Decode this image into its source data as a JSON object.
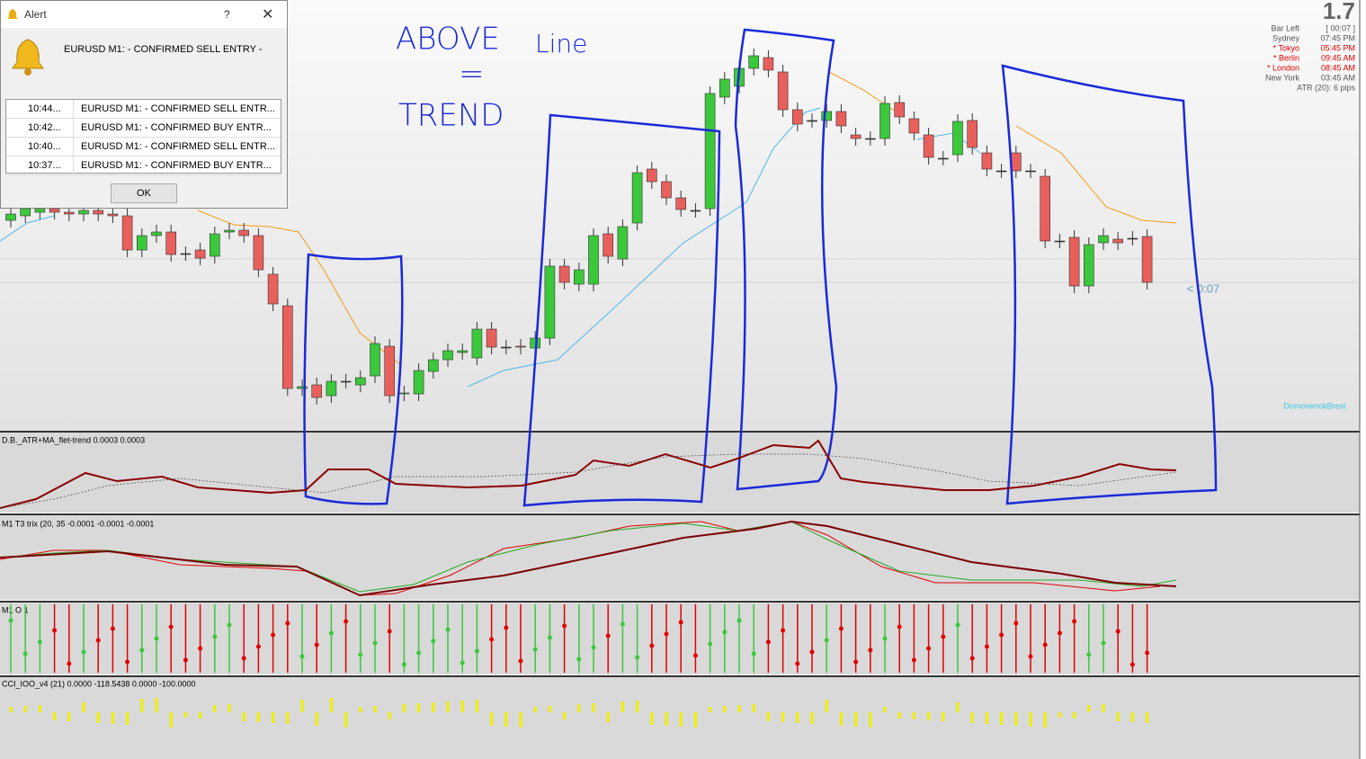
{
  "alert": {
    "title": "Alert",
    "help": "?",
    "message": "EURUSD M1:  -  CONFIRMED SELL ENTRY  -",
    "rows": [
      {
        "time": "10:44...",
        "text": "EURUSD M1:  -  CONFIRMED SELL ENTR..."
      },
      {
        "time": "10:42...",
        "text": "EURUSD M1:  -  CONFIRMED BUY ENTR..."
      },
      {
        "time": "10:40...",
        "text": "EURUSD M1:  -  CONFIRMED SELL ENTR..."
      },
      {
        "time": "10:37...",
        "text": "EURUSD M1:  -  CONFIRMED BUY ENTR..."
      }
    ],
    "ok": "OK"
  },
  "info": {
    "value": "1.7",
    "rows": [
      [
        "Bar Left",
        "[ 00:07 ]"
      ],
      [
        "Sydney",
        "07:45 PM"
      ],
      [
        "* Tokyo",
        "05:45 PM"
      ],
      [
        "* Berlin",
        "09:45 AM"
      ],
      [
        "* London",
        "08:45 AM"
      ],
      [
        "New York",
        "03:45 AM"
      ]
    ],
    "atr": "ATR (20): 6 pips"
  },
  "countdown": "< 0:07",
  "watermark": "DomovenokBrest",
  "annotation": [
    "ABOVE",
    "Line",
    "=",
    "TREND"
  ],
  "panels": [
    "D.B._ATR+MA_flet-trend 0.0003 0.0003",
    "M1 T3 trix (20, 35 -0.0001 -0.0001 -0.0001",
    "M1 O 1",
    "CCI_IOO_v4 (21) 0.0000 -118.5438 0.0000 -100.0000"
  ]
}
